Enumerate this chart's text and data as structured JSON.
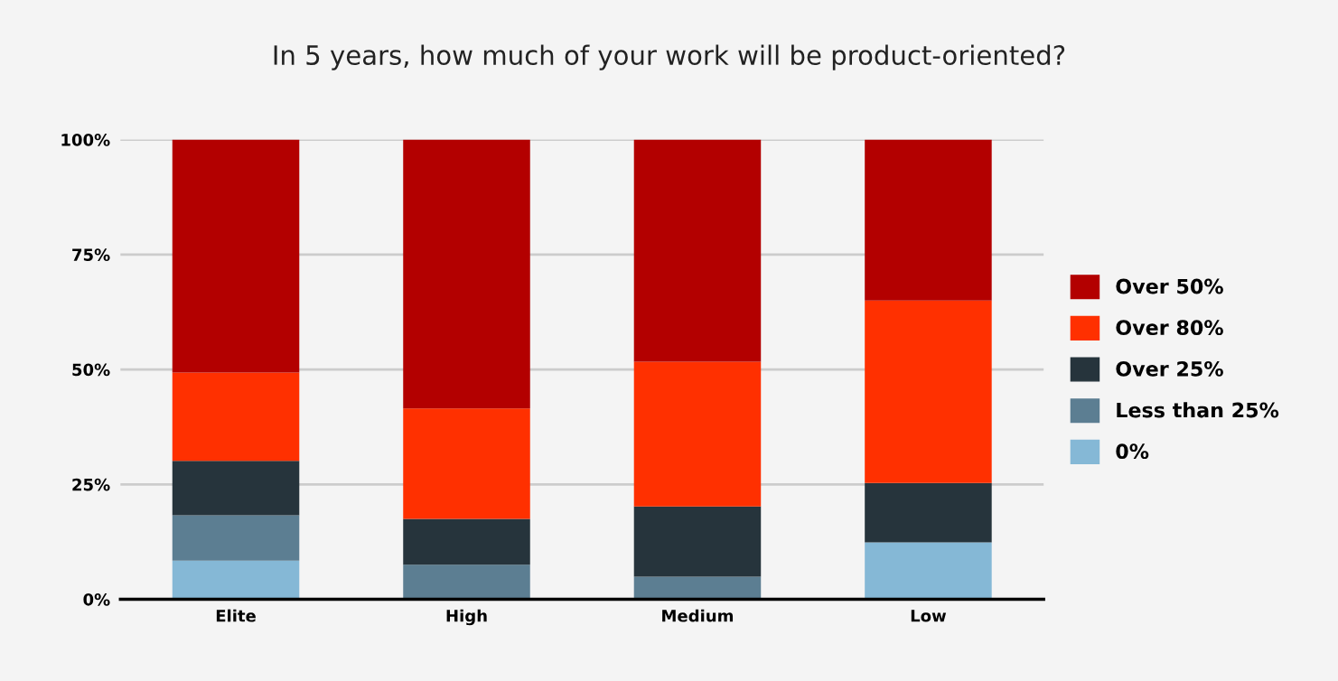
{
  "chart_data": {
    "type": "bar",
    "title": "In 5 years, how much of your work will be product-oriented?",
    "categories": [
      "Elite",
      "High",
      "Medium",
      "Low"
    ],
    "stacked": true,
    "series": [
      {
        "name": "0%",
        "color": "#85b8d6",
        "values": [
          8.4,
          0,
          0,
          12.4
        ]
      },
      {
        "name": "Less than 25%",
        "color": "#5c7e92",
        "values": [
          9.9,
          7.5,
          4.9,
          0
        ]
      },
      {
        "name": "Over 25%",
        "color": "#26343c",
        "values": [
          11.8,
          10,
          15.3,
          12.9
        ]
      },
      {
        "name": "Over 80%",
        "color": "#ff3000",
        "values": [
          19.2,
          24,
          31.5,
          39.7
        ]
      },
      {
        "name": "Over 50%",
        "color": "#b30000",
        "values": [
          50.7,
          58.5,
          48.3,
          35
        ]
      }
    ],
    "ylim": [
      0,
      100
    ],
    "yticks": [
      {
        "value": 0,
        "label": "0%"
      },
      {
        "value": 25,
        "label": "25%"
      },
      {
        "value": 50,
        "label": "50%"
      },
      {
        "value": 75,
        "label": "75%"
      },
      {
        "value": 100,
        "label": "100%"
      }
    ],
    "grid": "y",
    "legend": "right"
  }
}
